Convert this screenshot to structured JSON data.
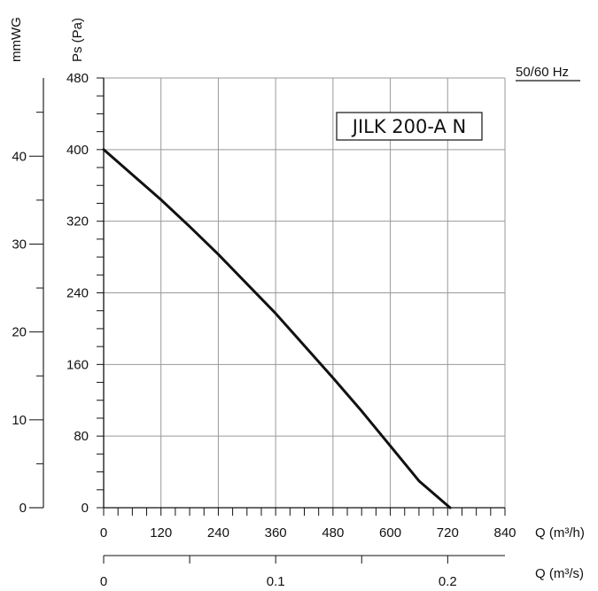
{
  "chart_data": {
    "type": "line",
    "frequency_label": "50/60 Hz",
    "model_label": "JILK 200-A N",
    "y_axis_pa": {
      "label": "Ps (Pa)",
      "range": [
        0,
        480
      ],
      "ticks": [
        "0",
        "80",
        "160",
        "240",
        "320",
        "400",
        "480"
      ]
    },
    "y_axis_mmwg": {
      "label": "mmWG",
      "range": [
        0,
        48.9
      ],
      "ticks": [
        "0",
        "10",
        "20",
        "30",
        "40"
      ]
    },
    "x_axis_m3h": {
      "label": "Q (m³/h)",
      "range": [
        0,
        840
      ],
      "ticks": [
        "0",
        "120",
        "240",
        "360",
        "480",
        "600",
        "720",
        "840"
      ]
    },
    "x_axis_m3s": {
      "label": "Q (m³/s)",
      "range": [
        0,
        0.2333
      ],
      "ticks": [
        "0",
        "0.1",
        "0.2"
      ]
    },
    "grid": true,
    "series": [
      {
        "x": [
          0,
          60,
          120,
          180,
          240,
          300,
          360,
          420,
          480,
          540,
          600,
          660,
          725
        ],
        "y": [
          400,
          372,
          344,
          314,
          283,
          250,
          217,
          181,
          145,
          108,
          69,
          30,
          0
        ]
      }
    ]
  }
}
